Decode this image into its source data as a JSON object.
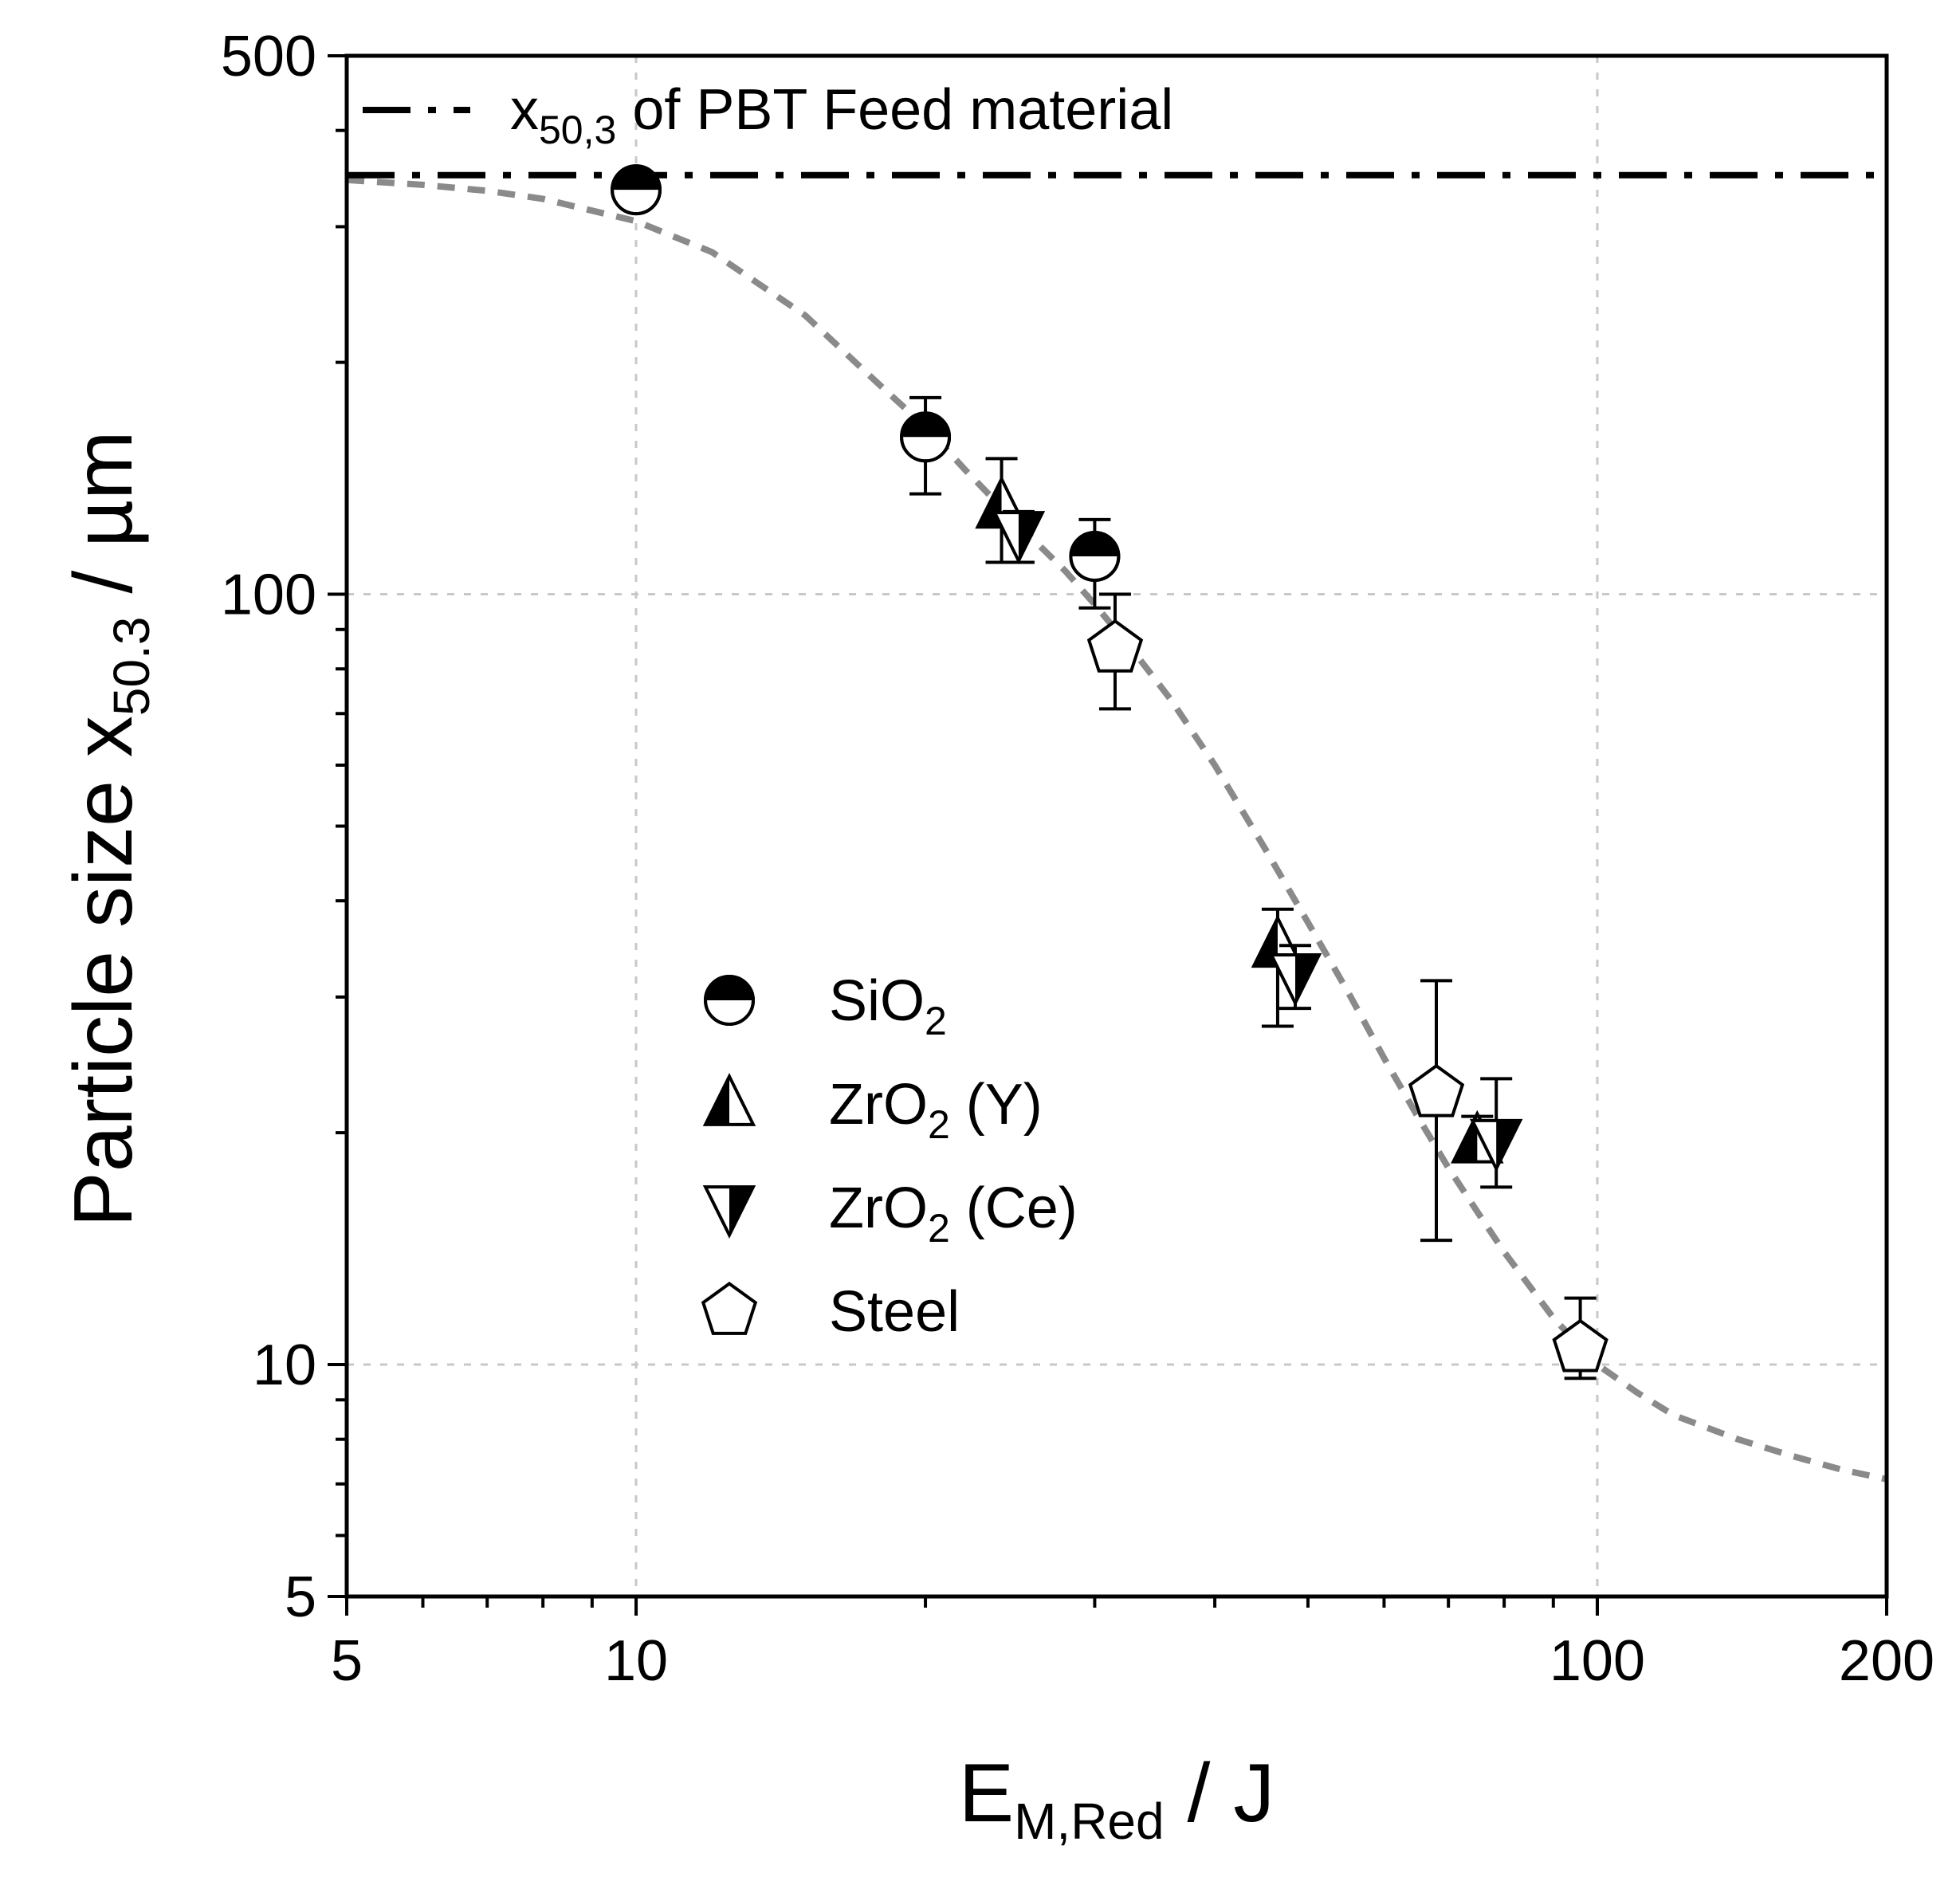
{
  "chart_data": {
    "type": "scatter",
    "x_scale": "log",
    "y_scale": "log",
    "xlim": [
      5,
      200
    ],
    "ylim": [
      5,
      500
    ],
    "grid": true,
    "x_ticks": [
      5,
      10,
      100,
      200
    ],
    "x_tick_labels": [
      "5",
      "10",
      "100",
      "200"
    ],
    "x_gridlines": [
      10,
      100
    ],
    "y_ticks": [
      5,
      10,
      100,
      500
    ],
    "y_tick_labels": [
      "5",
      "10",
      "100",
      "500"
    ],
    "y_gridlines": [
      10,
      100
    ],
    "xlabel": {
      "main": "E",
      "sub": "M,Red",
      "suffix": " / J"
    },
    "ylabel": {
      "main": "Particle size x",
      "sub": "50.3",
      "suffix": " / µm"
    },
    "reference_line": {
      "y": 350,
      "label_main": "x",
      "label_sub": "50,3",
      "label_suffix": " of PBT Feed material",
      "style": "dash-dot",
      "color": "#000000"
    },
    "fit_curve": {
      "style": "dashed",
      "color": "#8a8a8a",
      "x": [
        5,
        6,
        7,
        8,
        10,
        12,
        15,
        18,
        20,
        22,
        25,
        28,
        30,
        33,
        36,
        40,
        45,
        50,
        55,
        60,
        65,
        70,
        75,
        80,
        90,
        100,
        110,
        120,
        140,
        160,
        180,
        200
      ],
      "y": [
        345,
        340,
        334,
        326,
        305,
        278,
        230,
        186,
        165,
        145,
        123,
        107,
        97,
        84,
        73,
        60,
        47,
        37.5,
        30.5,
        25,
        21,
        18,
        15.8,
        14,
        11.5,
        10,
        9.2,
        8.6,
        8.0,
        7.6,
        7.3,
        7.1
      ]
    },
    "series": [
      {
        "name": "SiO",
        "name_sub": "2",
        "marker": "circle-half-top",
        "points": [
          {
            "x": 10,
            "y": 335,
            "err_low": 335,
            "err_high": 335
          },
          {
            "x": 20,
            "y": 160,
            "err_low": 135,
            "err_high": 180
          },
          {
            "x": 30,
            "y": 112,
            "err_low": 96,
            "err_high": 125
          }
        ]
      },
      {
        "name": "ZrO",
        "name_sub": "2",
        "name_suffix": " (Y)",
        "marker": "triangle-up-half-left",
        "points": [
          {
            "x": 24,
            "y": 130,
            "err_low": 110,
            "err_high": 150
          },
          {
            "x": 46.5,
            "y": 35,
            "err_low": 27.5,
            "err_high": 39
          },
          {
            "x": 75,
            "y": 19.5,
            "err_low": 18.5,
            "err_high": 21
          }
        ]
      },
      {
        "name": "ZrO",
        "name_sub": "2",
        "name_suffix": " (Ce)",
        "marker": "triangle-down-half-right",
        "points": [
          {
            "x": 25,
            "y": 120,
            "err_low": 110,
            "err_high": 128
          },
          {
            "x": 48.5,
            "y": 32,
            "err_low": 29,
            "err_high": 35
          },
          {
            "x": 78.5,
            "y": 19.5,
            "err_low": 17,
            "err_high": 23.5
          }
        ]
      },
      {
        "name": "Steel",
        "marker": "pentagon-open",
        "points": [
          {
            "x": 31.5,
            "y": 85,
            "err_low": 71,
            "err_high": 100
          },
          {
            "x": 68,
            "y": 22.5,
            "err_low": 14.5,
            "err_high": 31.5
          },
          {
            "x": 96,
            "y": 10.5,
            "err_low": 9.6,
            "err_high": 12.2
          }
        ]
      }
    ]
  }
}
